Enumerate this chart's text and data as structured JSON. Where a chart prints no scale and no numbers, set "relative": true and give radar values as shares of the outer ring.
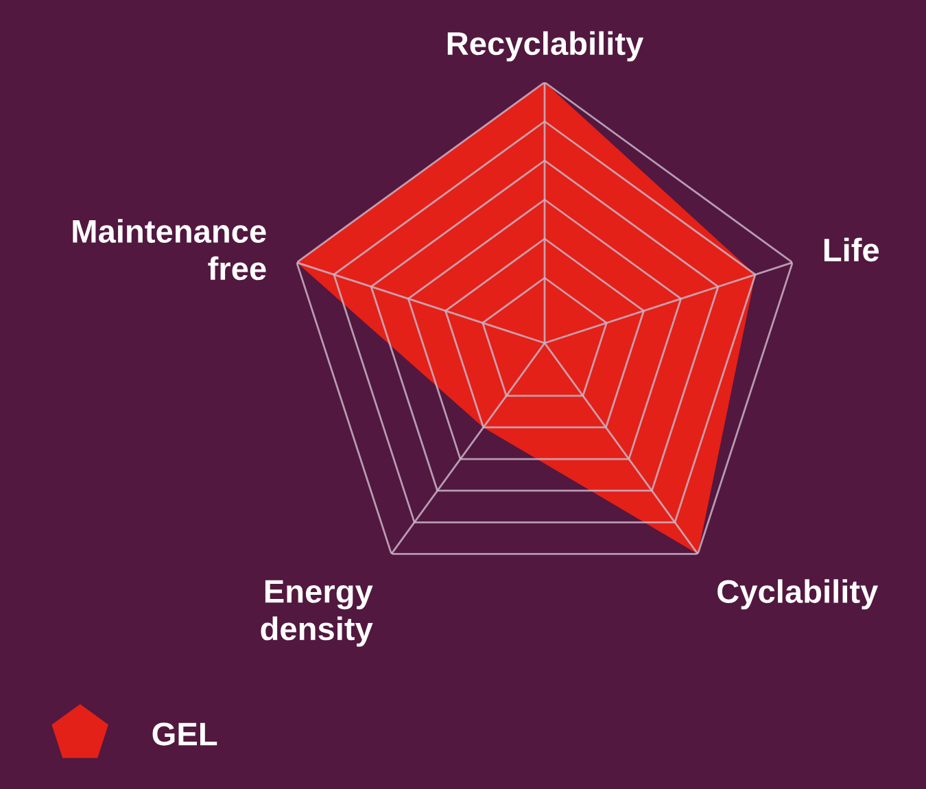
{
  "chart_data": {
    "type": "radar",
    "relative": true,
    "categories": [
      "Recyclability",
      "Life",
      "Cyclability",
      "Energy\ndensity",
      "Maintenance\nfree"
    ],
    "series": [
      {
        "name": "GEL",
        "color": "#e32118",
        "values": [
          1,
          0.85,
          1,
          0.4,
          1
        ]
      }
    ],
    "legend": "bottom left",
    "grid": true
  }
}
